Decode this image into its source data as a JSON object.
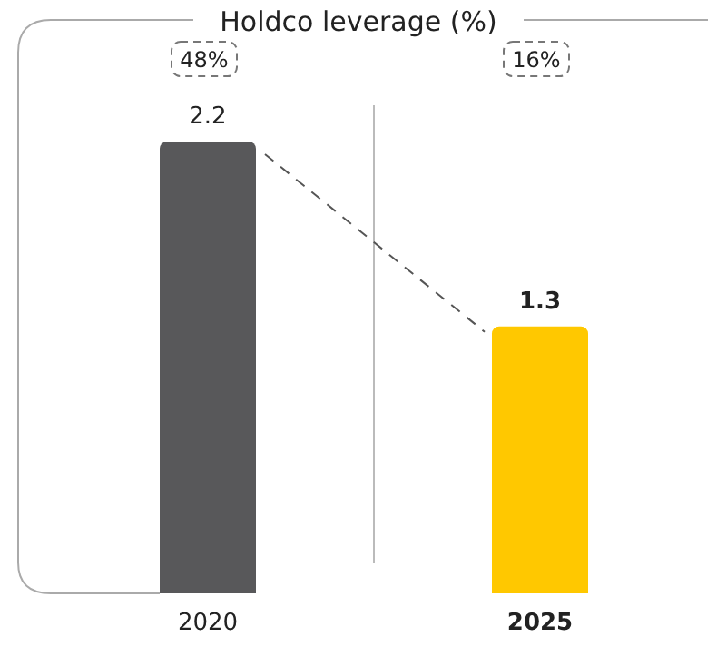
{
  "chart_data": {
    "type": "bar",
    "title": "Holdco leverage (%)",
    "categories": [
      "2020",
      "2025"
    ],
    "values": [
      2.2,
      1.3
    ],
    "colors": [
      "#58585a",
      "#ffc800"
    ],
    "data_labels": true,
    "annotations": [
      "48%",
      "16%"
    ],
    "grid": false,
    "legend": false
  }
}
